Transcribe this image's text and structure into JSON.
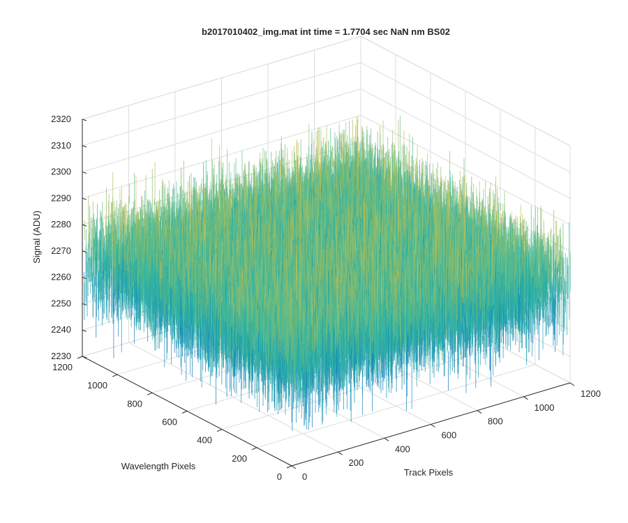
{
  "chart_data": {
    "type": "surface",
    "title": "b2017010402_img.mat int time = 1.7704 sec  NaN nm BS02",
    "xlabel": "Track Pixels",
    "ylabel": "Wavelength Pixels",
    "zlabel": "Signal (ADU)",
    "xlim": [
      0,
      1200
    ],
    "ylim": [
      0,
      1200
    ],
    "zlim": [
      2230,
      2320
    ],
    "x_ticks": [
      "0",
      "200",
      "400",
      "600",
      "800",
      "1000",
      "1200"
    ],
    "y_ticks": [
      "0",
      "200",
      "400",
      "600",
      "800",
      "1000",
      "1200"
    ],
    "z_ticks": [
      "2230",
      "2240",
      "2250",
      "2260",
      "2270",
      "2280",
      "2290",
      "2300",
      "2310",
      "2320"
    ],
    "surface": {
      "x_range": [
        0,
        1200
      ],
      "y_range": [
        0,
        1200
      ],
      "mean_signal": 2268,
      "min_signal": 2230,
      "max_signal": 2320,
      "colormap": "parula"
    },
    "grid": true,
    "colors": {
      "low": "#0072BD",
      "mid": "#2FB7A4",
      "high": "#D9C140"
    }
  }
}
